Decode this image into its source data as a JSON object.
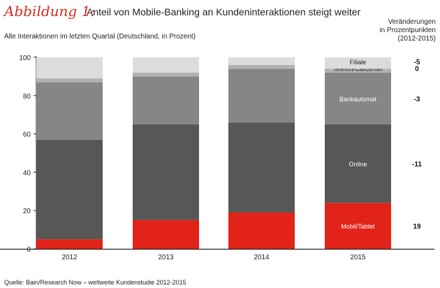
{
  "chart_data": {
    "type": "bar",
    "stacked": true,
    "figure_label": "Abbildung 1:",
    "title": "Anteil von Mobile-Banking an Kundeninteraktionen steigt weiter",
    "subtitle": "Alle Interaktionen im letzten Quartal (Deutschland, in Prozent)",
    "change_header": [
      "Veränderungen",
      "in Prozentpunkten",
      "(2012-2015)"
    ],
    "categories": [
      "2012",
      "2013",
      "2014",
      "2015"
    ],
    "ylim": [
      0,
      100
    ],
    "yticks": [
      0,
      20,
      40,
      60,
      80,
      100
    ],
    "series": [
      {
        "name": "Mobil/Tablet",
        "color": "#e2231a",
        "label_color": "#fff",
        "values": [
          5,
          15,
          19,
          24
        ],
        "change": "19"
      },
      {
        "name": "Online",
        "color": "#575755",
        "label_color": "#fff",
        "values": [
          52,
          50,
          47,
          41
        ],
        "change": "-11"
      },
      {
        "name": "Bankautomat",
        "color": "#868686",
        "label_color": "#fff",
        "values": [
          30,
          25,
          28,
          27
        ],
        "change": "-3"
      },
      {
        "name": "Telefon/Callcenter",
        "color": "#b1b1b1",
        "label_color": "#222",
        "values": [
          2,
          2,
          2,
          2
        ],
        "change": "0"
      },
      {
        "name": "Filiale",
        "color": "#dcdcdc",
        "label_color": "#222",
        "values": [
          11,
          8,
          4,
          6
        ],
        "change": "-5"
      }
    ],
    "source": "Quelle: Bain/Research Now – weltweite Kundenstudie 2012-2015"
  }
}
